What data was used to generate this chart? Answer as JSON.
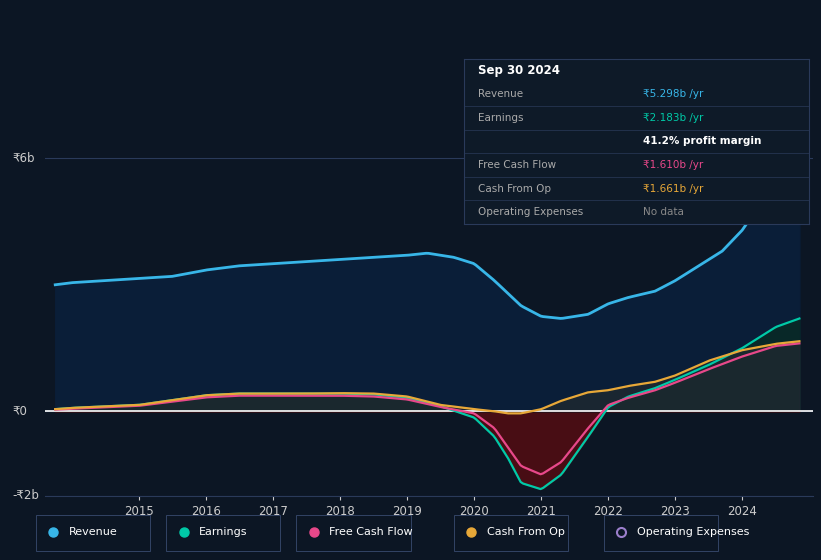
{
  "background_color": "#0c1624",
  "plot_bg_color": "#0c1624",
  "revenue_color": "#38b6e8",
  "earnings_color": "#00c9a7",
  "fcf_color": "#e8488a",
  "cashfromop_color": "#e8a838",
  "opex_color": "#9b7fcb",
  "revenue_fill": "#0d2340",
  "earnings_fill_pos": "#0a2e2e",
  "earnings_fill_neg": "#4a0d18",
  "cashop_fill_pos": "#2a2030",
  "cashop_fill_neg": "#3a1020",
  "ylabel_top": "₹6b",
  "ylabel_zero": "₹0",
  "ylabel_bottom": "-₹2b",
  "x_ticks": [
    2015,
    2016,
    2017,
    2018,
    2019,
    2020,
    2021,
    2022,
    2023,
    2024
  ],
  "legend_items": [
    "Revenue",
    "Earnings",
    "Free Cash Flow",
    "Cash From Op",
    "Operating Expenses"
  ],
  "legend_colors": [
    "#38b6e8",
    "#00c9a7",
    "#e8488a",
    "#e8a838",
    "#9b7fcb"
  ],
  "legend_filled": [
    true,
    true,
    true,
    true,
    false
  ],
  "info_date": "Sep 30 2024",
  "info_rows": [
    {
      "label": "Revenue",
      "value": "₹5.298b /yr",
      "color": "#38b6e8"
    },
    {
      "label": "Earnings",
      "value": "₹2.183b /yr",
      "color": "#00c9a7"
    },
    {
      "label": "",
      "value": "41.2% profit margin",
      "color": "#ffffff",
      "bold": true
    },
    {
      "label": "Free Cash Flow",
      "value": "₹1.610b /yr",
      "color": "#e8488a"
    },
    {
      "label": "Cash From Op",
      "value": "₹1.661b /yr",
      "color": "#e8a838"
    },
    {
      "label": "Operating Expenses",
      "value": "No data",
      "color": "#888888"
    }
  ]
}
